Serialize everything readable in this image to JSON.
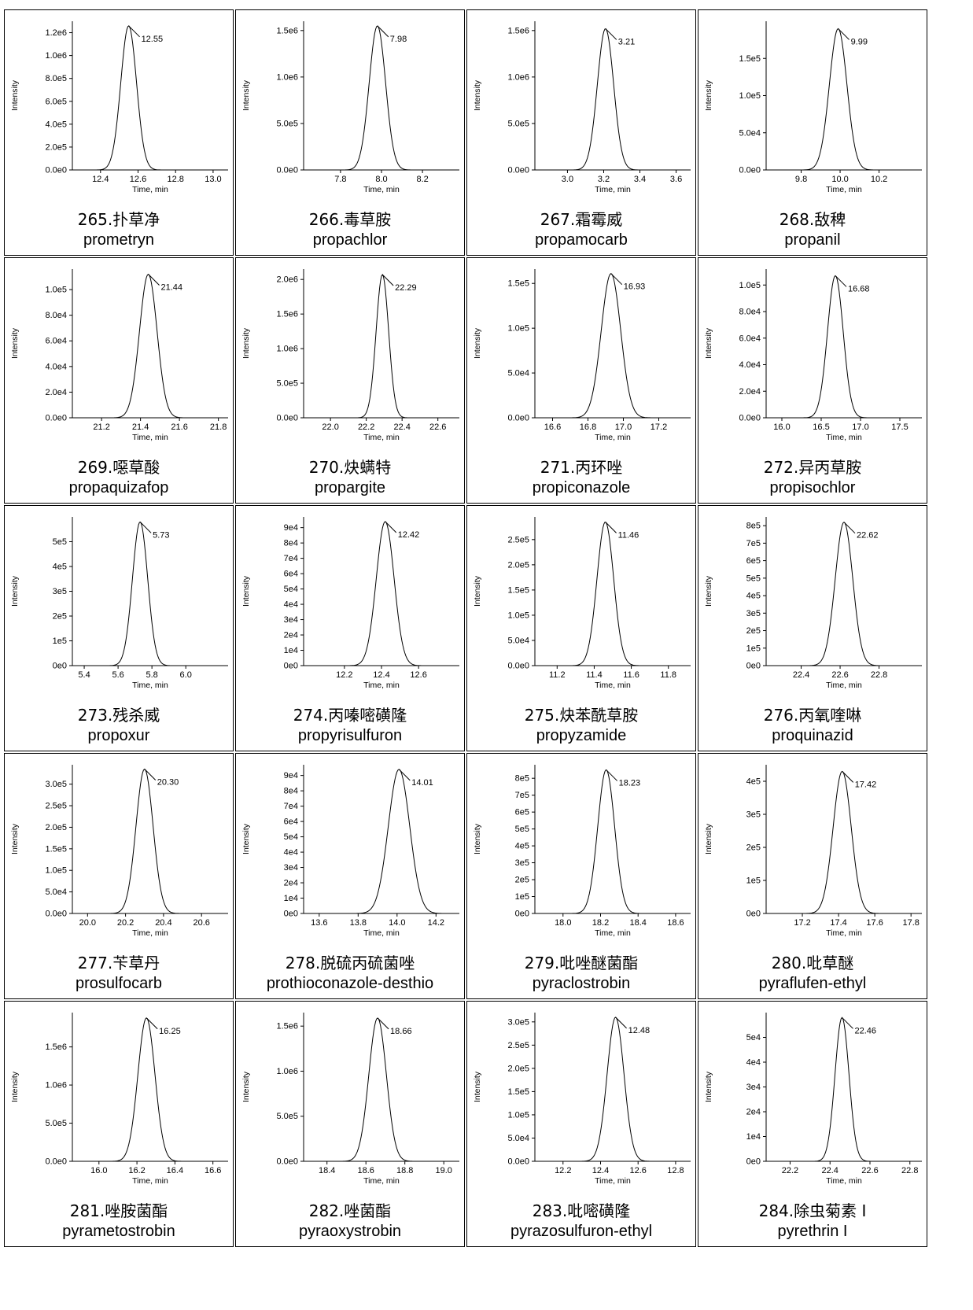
{
  "chart_data": [
    {
      "type": "line",
      "id": "265",
      "cn_name": "265.扑草净",
      "en_name": "prometryn",
      "ylabel": "Intensity",
      "xlabel": "Time, min",
      "peak_label": "12.55",
      "peak_rt": 12.55,
      "peak_height": 1260000,
      "sigma": 0.042,
      "xlim": [
        12.25,
        13.08
      ],
      "ylim": [
        0,
        1300000
      ],
      "xticks": [
        12.4,
        12.6,
        12.8,
        13.0
      ],
      "yticks": [
        "0.0e0",
        "2.0e5",
        "4.0e5",
        "6.0e5",
        "8.0e5",
        "1.0e6",
        "1.2e6"
      ],
      "ytick_values": [
        0,
        200000,
        400000,
        600000,
        800000,
        1000000,
        1200000
      ]
    },
    {
      "type": "line",
      "id": "266",
      "cn_name": "266.毒草胺",
      "en_name": "propachlor",
      "ylabel": "Intensity",
      "xlabel": "Time, min",
      "peak_label": "7.98",
      "peak_rt": 7.98,
      "peak_height": 1550000,
      "sigma": 0.04,
      "xlim": [
        7.62,
        8.38
      ],
      "ylim": [
        0,
        1600000
      ],
      "xticks": [
        7.8,
        8.0,
        8.2
      ],
      "yticks": [
        "0.0e0",
        "5.0e5",
        "1.0e6",
        "1.5e6"
      ],
      "ytick_values": [
        0,
        500000,
        1000000,
        1500000
      ]
    },
    {
      "type": "line",
      "id": "267",
      "cn_name": "267.霜霉威",
      "en_name": "propamocarb",
      "ylabel": "Intensity",
      "xlabel": "Time, min",
      "peak_label": "3.21",
      "peak_rt": 3.21,
      "peak_height": 1520000,
      "sigma": 0.045,
      "xlim": [
        2.82,
        3.68
      ],
      "ylim": [
        0,
        1600000
      ],
      "xticks": [
        3.0,
        3.2,
        3.4,
        3.6
      ],
      "yticks": [
        "0.0e0",
        "5.0e5",
        "1.0e6",
        "1.5e6"
      ],
      "ytick_values": [
        0,
        500000,
        1000000,
        1500000
      ]
    },
    {
      "type": "line",
      "id": "268",
      "cn_name": "268.敌稗",
      "en_name": "propanil",
      "ylabel": "Intensity",
      "xlabel": "Time, min",
      "peak_label": "9.99",
      "peak_rt": 9.99,
      "peak_height": 190000,
      "sigma": 0.045,
      "xlim": [
        9.62,
        10.42
      ],
      "ylim": [
        0,
        200000
      ],
      "xticks": [
        9.8,
        10.0,
        10.2
      ],
      "yticks": [
        "0.0e0",
        "5.0e4",
        "1.0e5",
        "1.5e5"
      ],
      "ytick_values": [
        0,
        50000,
        100000,
        150000
      ]
    },
    {
      "type": "line",
      "id": "269",
      "cn_name": "269.噁草酸",
      "en_name": "propaquizafop",
      "ylabel": "Intensity",
      "xlabel": "Time, min",
      "peak_label": "21.44",
      "peak_rt": 21.44,
      "peak_height": 112000,
      "sigma": 0.045,
      "xlim": [
        21.05,
        21.85
      ],
      "ylim": [
        0,
        116000
      ],
      "xticks": [
        21.2,
        21.4,
        21.6,
        21.8
      ],
      "yticks": [
        "0.0e0",
        "2.0e4",
        "4.0e4",
        "6.0e4",
        "8.0e4",
        "1.0e5"
      ],
      "ytick_values": [
        0,
        20000,
        40000,
        60000,
        80000,
        100000
      ]
    },
    {
      "type": "line",
      "id": "270",
      "cn_name": "270.炔螨特",
      "en_name": "propargite",
      "ylabel": "Intensity",
      "xlabel": "Time, min",
      "peak_label": "22.29",
      "peak_rt": 22.29,
      "peak_height": 2070000,
      "sigma": 0.035,
      "xlim": [
        21.85,
        22.72
      ],
      "ylim": [
        0,
        2150000
      ],
      "xticks": [
        22.0,
        22.2,
        22.4,
        22.6
      ],
      "yticks": [
        "0.0e0",
        "5.0e5",
        "1.0e6",
        "1.5e6",
        "2.0e6"
      ],
      "ytick_values": [
        0,
        500000,
        1000000,
        1500000,
        2000000
      ]
    },
    {
      "type": "line",
      "id": "271",
      "cn_name": "271.丙环唑",
      "en_name": "propiconazole",
      "ylabel": "Intensity",
      "xlabel": "Time, min",
      "peak_label": "16.93",
      "peak_rt": 16.93,
      "peak_height": 161000,
      "sigma": 0.055,
      "xlim": [
        16.5,
        17.38
      ],
      "ylim": [
        0,
        166000
      ],
      "xticks": [
        16.6,
        16.8,
        17.0,
        17.2
      ],
      "yticks": [
        "0.0e0",
        "5.0e4",
        "1.0e5",
        "1.5e5"
      ],
      "ytick_values": [
        0,
        50000,
        100000,
        150000
      ]
    },
    {
      "type": "line",
      "id": "272",
      "cn_name": "272.异丙草胺",
      "en_name": "propisochlor",
      "ylabel": "Intensity",
      "xlabel": "Time, min",
      "peak_label": "16.68",
      "peak_rt": 16.68,
      "peak_height": 107000,
      "sigma": 0.1,
      "xlim": [
        15.8,
        17.78
      ],
      "ylim": [
        0,
        112000
      ],
      "xticks": [
        16.0,
        16.5,
        17.0,
        17.5
      ],
      "yticks": [
        "0.0e0",
        "2.0e4",
        "4.0e4",
        "6.0e4",
        "8.0e4",
        "1.0e5"
      ],
      "ytick_values": [
        0,
        20000,
        40000,
        60000,
        80000,
        100000
      ]
    },
    {
      "type": "line",
      "id": "273",
      "cn_name": "273.残杀威",
      "en_name": "propoxur",
      "ylabel": "Intensity",
      "xlabel": "Time, min",
      "peak_label": "5.73",
      "peak_rt": 5.73,
      "peak_height": 580000,
      "sigma": 0.045,
      "xlim": [
        5.33,
        6.25
      ],
      "ylim": [
        0,
        600000
      ],
      "xticks": [
        5.4,
        5.6,
        5.8,
        6.0
      ],
      "yticks": [
        "0e0",
        "1e5",
        "2e5",
        "3e5",
        "4e5",
        "5e5"
      ],
      "ytick_values": [
        0,
        100000,
        200000,
        300000,
        400000,
        500000
      ]
    },
    {
      "type": "line",
      "id": "274",
      "cn_name": "274.丙嗪嘧磺隆",
      "en_name": "propyrisulfuron",
      "ylabel": "Intensity",
      "xlabel": "Time, min",
      "peak_label": "12.42",
      "peak_rt": 12.42,
      "peak_height": 94000,
      "sigma": 0.048,
      "xlim": [
        11.98,
        12.82
      ],
      "ylim": [
        0,
        97000
      ],
      "xticks": [
        12.2,
        12.4,
        12.6
      ],
      "yticks": [
        "0e0",
        "1e4",
        "2e4",
        "3e4",
        "4e4",
        "5e4",
        "6e4",
        "7e4",
        "8e4",
        "9e4"
      ],
      "ytick_values": [
        0,
        10000,
        20000,
        30000,
        40000,
        50000,
        60000,
        70000,
        80000,
        90000
      ]
    },
    {
      "type": "line",
      "id": "275",
      "cn_name": "275.炔苯酰草胺",
      "en_name": "propyzamide",
      "ylabel": "Intensity",
      "xlabel": "Time, min",
      "peak_label": "11.46",
      "peak_rt": 11.46,
      "peak_height": 285000,
      "sigma": 0.045,
      "xlim": [
        11.08,
        11.92
      ],
      "ylim": [
        0,
        295000
      ],
      "xticks": [
        11.2,
        11.4,
        11.6,
        11.8
      ],
      "yticks": [
        "0.0e0",
        "5.0e4",
        "1.0e5",
        "1.5e5",
        "2.0e5",
        "2.5e5"
      ],
      "ytick_values": [
        0,
        50000,
        100000,
        150000,
        200000,
        250000
      ]
    },
    {
      "type": "line",
      "id": "276",
      "cn_name": "276.丙氧喹啉",
      "en_name": "proquinazid",
      "ylabel": "Intensity",
      "xlabel": "Time, min",
      "peak_label": "22.62",
      "peak_rt": 22.62,
      "peak_height": 820000,
      "sigma": 0.045,
      "xlim": [
        22.22,
        23.02
      ],
      "ylim": [
        0,
        850000
      ],
      "xticks": [
        22.4,
        22.6,
        22.8
      ],
      "yticks": [
        "0e0",
        "1e5",
        "2e5",
        "3e5",
        "4e5",
        "5e5",
        "6e5",
        "7e5",
        "8e5"
      ],
      "ytick_values": [
        0,
        100000,
        200000,
        300000,
        400000,
        500000,
        600000,
        700000,
        800000
      ]
    },
    {
      "type": "line",
      "id": "277",
      "cn_name": "277.苄草丹",
      "en_name": "prosulfocarb",
      "ylabel": "Intensity",
      "xlabel": "Time, min",
      "peak_label": "20.30",
      "peak_rt": 20.3,
      "peak_height": 335000,
      "sigma": 0.045,
      "xlim": [
        19.92,
        20.74
      ],
      "ylim": [
        0,
        345000
      ],
      "xticks": [
        20.0,
        20.2,
        20.4,
        20.6
      ],
      "yticks": [
        "0.0e0",
        "5.0e4",
        "1.0e5",
        "1.5e5",
        "2.0e5",
        "2.5e5",
        "3.0e5"
      ],
      "ytick_values": [
        0,
        50000,
        100000,
        150000,
        200000,
        250000,
        300000
      ]
    },
    {
      "type": "line",
      "id": "278",
      "cn_name": "278.脱硫丙硫菌唑",
      "en_name": "prothioconazole-desthio",
      "ylabel": "Intensity",
      "xlabel": "Time, min",
      "peak_label": "14.01",
      "peak_rt": 14.01,
      "peak_height": 94000,
      "sigma": 0.055,
      "xlim": [
        13.52,
        14.32
      ],
      "ylim": [
        0,
        97000
      ],
      "xticks": [
        13.6,
        13.8,
        14.0,
        14.2
      ],
      "yticks": [
        "0e0",
        "1e4",
        "2e4",
        "3e4",
        "4e4",
        "5e4",
        "6e4",
        "7e4",
        "8e4",
        "9e4"
      ],
      "ytick_values": [
        0,
        10000,
        20000,
        30000,
        40000,
        50000,
        60000,
        70000,
        80000,
        90000
      ]
    },
    {
      "type": "line",
      "id": "279",
      "cn_name": "279.吡唑醚菌酯",
      "en_name": "pyraclostrobin",
      "ylabel": "Intensity",
      "xlabel": "Time, min",
      "peak_label": "18.23",
      "peak_rt": 18.23,
      "peak_height": 850000,
      "sigma": 0.045,
      "xlim": [
        17.85,
        18.68
      ],
      "ylim": [
        0,
        880000
      ],
      "xticks": [
        18.0,
        18.2,
        18.4,
        18.6
      ],
      "yticks": [
        "0e0",
        "1e5",
        "2e5",
        "3e5",
        "4e5",
        "5e5",
        "6e5",
        "7e5",
        "8e5"
      ],
      "ytick_values": [
        0,
        100000,
        200000,
        300000,
        400000,
        500000,
        600000,
        700000,
        800000
      ]
    },
    {
      "type": "line",
      "id": "280",
      "cn_name": "280.吡草醚",
      "en_name": "pyraflufen-ethyl",
      "ylabel": "Intensity",
      "xlabel": "Time, min",
      "peak_label": "17.42",
      "peak_rt": 17.42,
      "peak_height": 430000,
      "sigma": 0.05,
      "xlim": [
        17.0,
        17.86
      ],
      "ylim": [
        0,
        450000
      ],
      "xticks": [
        17.2,
        17.4,
        17.6,
        17.8
      ],
      "yticks": [
        "0e0",
        "1e5",
        "2e5",
        "3e5",
        "4e5"
      ],
      "ytick_values": [
        0,
        100000,
        200000,
        300000,
        400000
      ]
    },
    {
      "type": "line",
      "id": "281",
      "cn_name": "281.唑胺菌酯",
      "en_name": "pyrametostrobin",
      "ylabel": "Intensity",
      "xlabel": "Time, min",
      "peak_label": "16.25",
      "peak_rt": 16.25,
      "peak_height": 1880000,
      "sigma": 0.045,
      "xlim": [
        15.86,
        16.68
      ],
      "ylim": [
        0,
        1950000
      ],
      "xticks": [
        16.0,
        16.2,
        16.4,
        16.6
      ],
      "yticks": [
        "0.0e0",
        "5.0e5",
        "1.0e6",
        "1.5e6"
      ],
      "ytick_values": [
        0,
        500000,
        1000000,
        1500000
      ]
    },
    {
      "type": "line",
      "id": "282",
      "cn_name": "282.唑菌酯",
      "en_name": "pyraoxystrobin",
      "ylabel": "Intensity",
      "xlabel": "Time, min",
      "peak_label": "18.66",
      "peak_rt": 18.66,
      "peak_height": 1590000,
      "sigma": 0.045,
      "xlim": [
        18.28,
        19.08
      ],
      "ylim": [
        0,
        1650000
      ],
      "xticks": [
        18.4,
        18.6,
        18.8,
        19.0
      ],
      "yticks": [
        "0.0e0",
        "5.0e5",
        "1.0e6",
        "1.5e6"
      ],
      "ytick_values": [
        0,
        500000,
        1000000,
        1500000
      ]
    },
    {
      "type": "line",
      "id": "283",
      "cn_name": "283.吡嘧磺隆",
      "en_name": "pyrazosulfuron-ethyl",
      "ylabel": "Intensity",
      "xlabel": "Time, min",
      "peak_label": "12.48",
      "peak_rt": 12.48,
      "peak_height": 310000,
      "sigma": 0.045,
      "xlim": [
        12.05,
        12.88
      ],
      "ylim": [
        0,
        320000
      ],
      "xticks": [
        12.2,
        12.4,
        12.6,
        12.8
      ],
      "yticks": [
        "0.0e0",
        "5.0e4",
        "1.0e5",
        "1.5e5",
        "2.0e5",
        "2.5e5",
        "3.0e5"
      ],
      "ytick_values": [
        0,
        50000,
        100000,
        150000,
        200000,
        250000,
        300000
      ]
    },
    {
      "type": "line",
      "id": "284",
      "cn_name": "284.除虫菊素 I",
      "en_name": "pyrethrin I",
      "ylabel": "Intensity",
      "xlabel": "Time, min",
      "peak_label": "22.46",
      "peak_rt": 22.46,
      "peak_height": 58000,
      "sigma": 0.035,
      "xlim": [
        22.08,
        22.86
      ],
      "ylim": [
        0,
        60000
      ],
      "xticks": [
        22.2,
        22.4,
        22.6,
        22.8
      ],
      "yticks": [
        "0e0",
        "1e4",
        "2e4",
        "3e4",
        "4e4",
        "5e4"
      ],
      "ytick_values": [
        0,
        10000,
        20000,
        30000,
        40000,
        50000
      ]
    }
  ]
}
